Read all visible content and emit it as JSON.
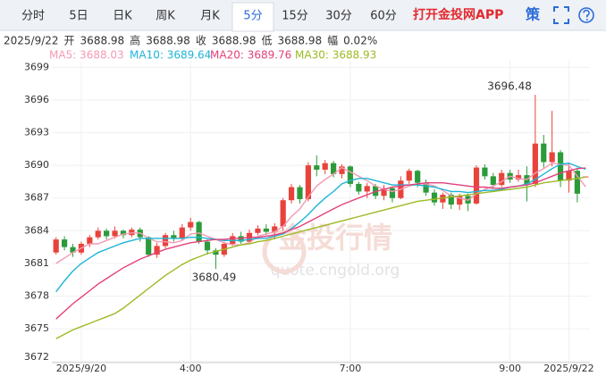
{
  "toolbar": {
    "tabs": [
      "分时",
      "5日",
      "日K",
      "周K",
      "月K",
      "5分",
      "15分",
      "30分",
      "60分"
    ],
    "active_tab": 5,
    "app_link": "打开金投网APP",
    "strategy": "策"
  },
  "info": {
    "date": "2025/9/22",
    "items": [
      {
        "label": "开",
        "value": 3688.98
      },
      {
        "label": "高",
        "value": 3688.98
      },
      {
        "label": "收",
        "value": 3688.98
      },
      {
        "label": "低",
        "value": 3688.98
      },
      {
        "label": "幅",
        "value": "0.02%"
      }
    ]
  },
  "watermark": {
    "title": "金投行情",
    "url": "quote.cngold.org"
  },
  "chart_data": {
    "type": "candlestick",
    "categories": [
      null,
      null,
      null,
      "2025/9/20",
      null,
      null,
      null,
      null,
      null,
      null,
      null,
      null,
      null,
      null,
      null,
      null,
      "4:00",
      null,
      null,
      null,
      null,
      null,
      null,
      null,
      null,
      null,
      null,
      null,
      null,
      null,
      null,
      null,
      null,
      null,
      null,
      "7:00",
      null,
      null,
      null,
      null,
      null,
      null,
      null,
      null,
      null,
      null,
      null,
      null,
      null,
      null,
      null,
      null,
      null,
      null,
      "9:00",
      null,
      null,
      null,
      null,
      null,
      null,
      "2025/9/22",
      null,
      null
    ],
    "open": [
      3682.0,
      3683.2,
      3682.5,
      3682.0,
      3682.8,
      3683.4,
      3684.0,
      3683.5,
      3684.0,
      3683.6,
      3684.1,
      3683.4,
      3681.8,
      3682.6,
      3683.6,
      3683.3,
      3684.3,
      3684.8,
      3683.0,
      3682.2,
      3681.8,
      3682.8,
      3683.5,
      3683.0,
      3683.8,
      3684.2,
      3683.9,
      3684.4,
      3686.8,
      3688.0,
      3686.9,
      3690.0,
      3689.6,
      3690.2,
      3689.2,
      3689.9,
      3688.3,
      3687.6,
      3688.1,
      3687.2,
      3687.9,
      3687.0,
      3688.6,
      3689.5,
      3688.4,
      3687.5,
      3686.6,
      3687.3,
      3686.4,
      3687.2,
      3686.5,
      3689.8,
      3689.0,
      3688.2,
      3689.3,
      3688.7,
      3689.1,
      3688.3,
      3692.0,
      3690.3,
      3691.2,
      3688.6,
      3689.5,
      3688.98
    ],
    "high": [
      3683.4,
      3683.5,
      3682.8,
      3683.0,
      3683.6,
      3684.3,
      3684.2,
      3684.4,
      3684.1,
      3684.3,
      3684.3,
      3683.5,
      3682.9,
      3683.8,
      3684.0,
      3684.6,
      3685.2,
      3684.9,
      3683.2,
      3682.4,
      3683.0,
      3683.8,
      3683.9,
      3684.1,
      3684.5,
      3684.6,
      3684.7,
      3687.0,
      3688.3,
      3688.2,
      3690.3,
      3690.9,
      3690.5,
      3690.4,
      3690.1,
      3690.0,
      3688.5,
      3688.4,
      3688.3,
      3688.2,
      3688.0,
      3689.0,
      3689.7,
      3689.6,
      3688.7,
      3687.8,
      3687.5,
      3687.5,
      3687.4,
      3687.4,
      3690.0,
      3690.1,
      3689.3,
      3689.6,
      3689.6,
      3689.6,
      3689.9,
      3696.48,
      3692.8,
      3695.0,
      3691.4,
      3690.2,
      3689.8,
      3688.98
    ],
    "low": [
      3681.8,
      3682.2,
      3681.6,
      3681.8,
      3682.5,
      3683.2,
      3683.2,
      3683.3,
      3683.3,
      3683.4,
      3683.0,
      3681.6,
      3681.5,
      3682.4,
      3683.0,
      3683.1,
      3684.0,
      3682.8,
      3681.8,
      3680.49,
      3681.6,
      3682.6,
      3682.8,
      3682.9,
      3683.6,
      3683.6,
      3683.2,
      3684.0,
      3686.5,
      3686.5,
      3686.7,
      3689.0,
      3689.2,
      3688.9,
      3688.8,
      3688.0,
      3687.3,
      3687.0,
      3686.9,
      3686.8,
      3686.6,
      3686.9,
      3688.3,
      3688.0,
      3687.2,
      3686.3,
      3686.0,
      3686.0,
      3685.9,
      3685.8,
      3686.4,
      3688.7,
      3687.9,
      3688.0,
      3688.4,
      3688.5,
      3686.7,
      3688.0,
      3689.8,
      3689.9,
      3688.0,
      3687.5,
      3686.6,
      3688.98
    ],
    "close": [
      3683.2,
      3682.5,
      3682.0,
      3682.8,
      3683.4,
      3684.0,
      3683.5,
      3684.0,
      3683.6,
      3684.1,
      3683.4,
      3681.8,
      3682.6,
      3683.6,
      3683.3,
      3684.3,
      3684.8,
      3683.0,
      3682.2,
      3681.8,
      3682.8,
      3683.5,
      3683.0,
      3683.8,
      3684.2,
      3683.9,
      3684.4,
      3686.8,
      3688.0,
      3686.9,
      3690.0,
      3689.6,
      3690.2,
      3689.2,
      3689.9,
      3688.3,
      3687.6,
      3688.1,
      3687.2,
      3687.9,
      3687.0,
      3688.6,
      3689.5,
      3688.4,
      3687.5,
      3686.6,
      3687.3,
      3686.4,
      3687.2,
      3686.5,
      3689.8,
      3689.0,
      3688.2,
      3689.3,
      3688.7,
      3689.1,
      3688.3,
      3692.0,
      3690.3,
      3691.2,
      3688.6,
      3689.5,
      3687.4,
      3688.98
    ],
    "up_color": "#e8433b",
    "down_color": "#2b9b3a",
    "series": [
      {
        "name": "MA5: 3688.03",
        "color": "#f49ab3",
        "values": [
          3681.0,
          3681.5,
          3682.0,
          3682.4,
          3682.8,
          3682.8,
          3683.1,
          3683.4,
          3683.7,
          3683.8,
          3683.8,
          3683.3,
          3683.0,
          3683.0,
          3682.9,
          3683.1,
          3683.7,
          3683.8,
          3683.5,
          3683.2,
          3682.9,
          3682.7,
          3682.7,
          3682.9,
          3683.5,
          3683.7,
          3683.9,
          3684.4,
          3685.3,
          3686.0,
          3687.1,
          3688.1,
          3688.7,
          3689.2,
          3689.8,
          3689.4,
          3689.0,
          3688.6,
          3688.1,
          3687.8,
          3687.6,
          3687.8,
          3688.1,
          3688.3,
          3688.3,
          3688.1,
          3687.7,
          3687.2,
          3687.0,
          3686.8,
          3687.4,
          3687.8,
          3688.1,
          3688.5,
          3689.0,
          3688.8,
          3688.7,
          3689.3,
          3689.7,
          3690.2,
          3690.1,
          3690.0,
          3689.0,
          3688.03
        ]
      },
      {
        "name": "MA10: 3689.64",
        "color": "#1db5d6",
        "values": [
          3678.4,
          3679.4,
          3680.3,
          3681.0,
          3681.5,
          3682.0,
          3682.3,
          3682.6,
          3682.9,
          3683.1,
          3683.3,
          3683.3,
          3683.3,
          3683.3,
          3683.3,
          3683.3,
          3683.4,
          3683.4,
          3683.3,
          3683.2,
          3683.1,
          3683.1,
          3683.1,
          3683.2,
          3683.3,
          3683.3,
          3683.5,
          3683.7,
          3684.2,
          3684.8,
          3685.5,
          3686.3,
          3687.0,
          3687.6,
          3688.3,
          3688.6,
          3688.8,
          3688.8,
          3688.6,
          3688.4,
          3688.2,
          3688.2,
          3688.2,
          3688.2,
          3688.1,
          3688.0,
          3687.8,
          3687.6,
          3687.6,
          3687.5,
          3687.6,
          3687.7,
          3687.7,
          3687.8,
          3688.0,
          3688.1,
          3688.3,
          3688.7,
          3689.2,
          3689.7,
          3690.1,
          3690.2,
          3689.9,
          3689.64
        ]
      },
      {
        "name": "MA20: 3689.76",
        "color": "#e4407c",
        "values": [
          3675.9,
          3676.6,
          3677.3,
          3677.9,
          3678.5,
          3679.1,
          3679.6,
          3680.1,
          3680.6,
          3681.0,
          3681.4,
          3681.7,
          3682.0,
          3682.3,
          3682.5,
          3682.7,
          3682.9,
          3683.0,
          3683.1,
          3683.2,
          3683.2,
          3683.3,
          3683.3,
          3683.4,
          3683.4,
          3683.5,
          3683.6,
          3683.8,
          3684.1,
          3684.4,
          3684.8,
          3685.2,
          3685.6,
          3686.0,
          3686.4,
          3686.7,
          3687.0,
          3687.3,
          3687.6,
          3687.8,
          3688.0,
          3688.1,
          3688.2,
          3688.3,
          3688.4,
          3688.4,
          3688.4,
          3688.3,
          3688.2,
          3688.1,
          3688.0,
          3688.0,
          3687.9,
          3687.9,
          3688.0,
          3688.1,
          3688.2,
          3688.4,
          3688.7,
          3689.0,
          3689.3,
          3689.5,
          3689.7,
          3689.76
        ]
      },
      {
        "name": "MA30: 3688.93",
        "color": "#9cba24",
        "values": [
          3674.1,
          3674.5,
          3674.9,
          3675.2,
          3675.5,
          3675.8,
          3676.1,
          3676.4,
          3676.9,
          3677.5,
          3678.1,
          3678.7,
          3679.3,
          3679.9,
          3680.4,
          3680.9,
          3681.3,
          3681.6,
          3681.9,
          3682.1,
          3682.3,
          3682.5,
          3682.7,
          3682.8,
          3683.0,
          3683.1,
          3683.3,
          3683.5,
          3683.7,
          3683.9,
          3684.1,
          3684.3,
          3684.5,
          3684.7,
          3684.9,
          3685.1,
          3685.3,
          3685.5,
          3685.7,
          3685.9,
          3686.1,
          3686.3,
          3686.5,
          3686.7,
          3686.8,
          3686.9,
          3687.0,
          3687.1,
          3687.2,
          3687.3,
          3687.4,
          3687.5,
          3687.6,
          3687.7,
          3687.8,
          3687.9,
          3688.0,
          3688.2,
          3688.4,
          3688.5,
          3688.6,
          3688.7,
          3688.8,
          3688.93
        ]
      }
    ],
    "ylim": [
      3671.9,
      3699.6
    ],
    "yticks": [
      3672,
      3675,
      3678,
      3681,
      3684,
      3687,
      3690,
      3693,
      3696,
      3699
    ],
    "grid": true
  }
}
